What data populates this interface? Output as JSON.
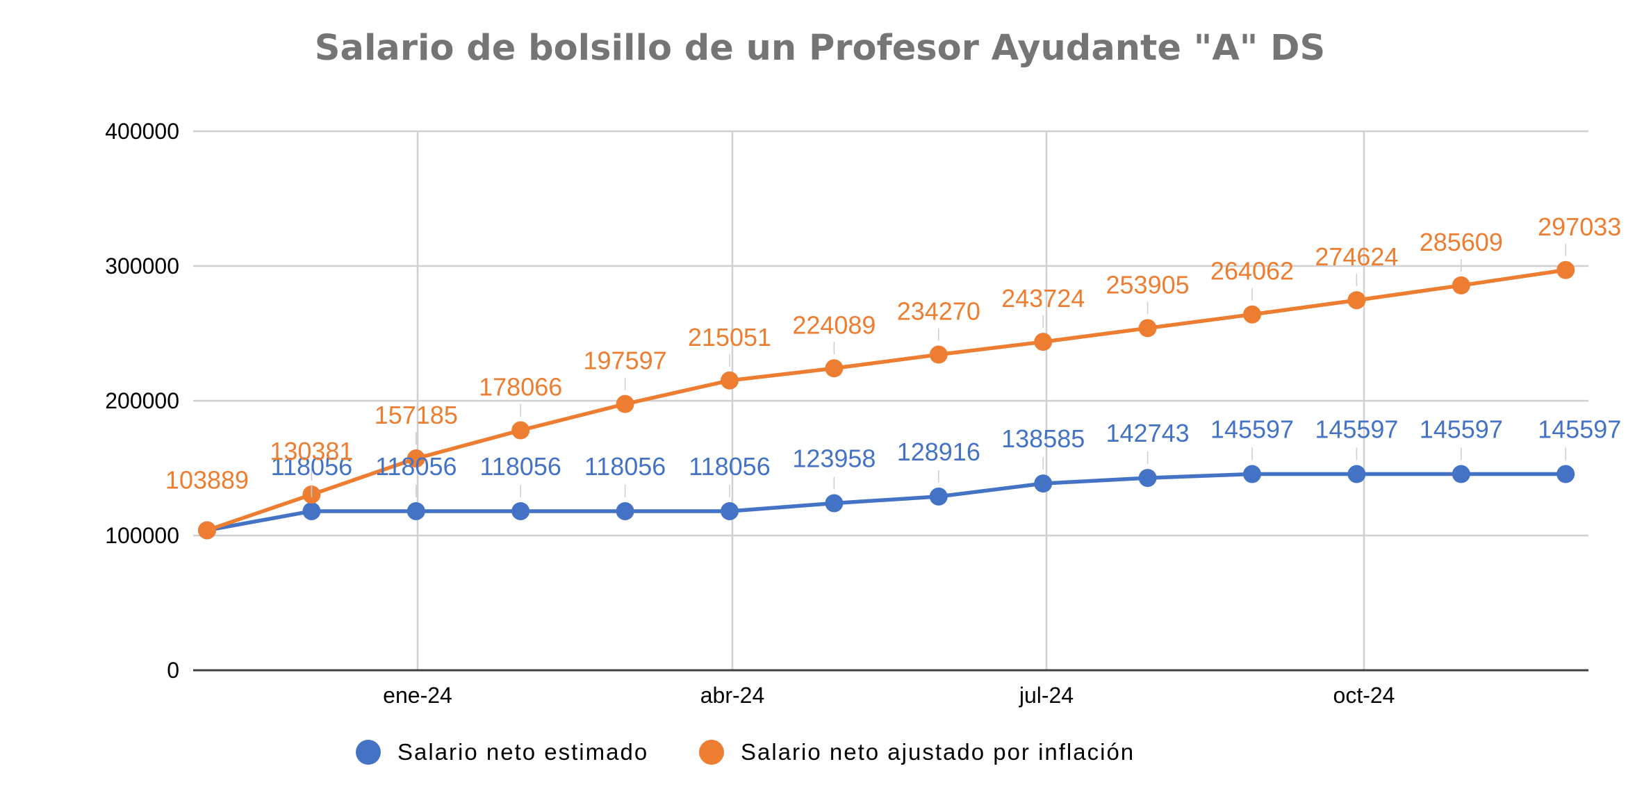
{
  "chart_data": {
    "type": "line",
    "title": "Salario de bolsillo de un Profesor Ayudante \"A\" DS",
    "xlabel": "",
    "ylabel": "",
    "ylim": [
      0,
      400000
    ],
    "yticks": [
      "0",
      "100000",
      "200000",
      "300000",
      "400000"
    ],
    "x_tick_labels": [
      "ene-24",
      "abr-24",
      "jul-24",
      "oct-24"
    ],
    "grid": true,
    "legend_position": "bottom",
    "colors": {
      "series1": "#4472c4",
      "series2": "#ed7d31",
      "grid": "#d0d0d0",
      "axis": "#404040"
    },
    "series": [
      {
        "name": "Salario neto estimado",
        "values": [
          103889,
          118056,
          118056,
          118056,
          118056,
          118056,
          123958,
          128916,
          138585,
          142743,
          145597,
          145597,
          145597,
          145597
        ]
      },
      {
        "name": "Salario neto ajustado por inflación",
        "values": [
          103889,
          130381,
          157185,
          178066,
          197597,
          215051,
          224089,
          234270,
          243724,
          253905,
          264062,
          274624,
          285609,
          297033
        ]
      }
    ]
  }
}
